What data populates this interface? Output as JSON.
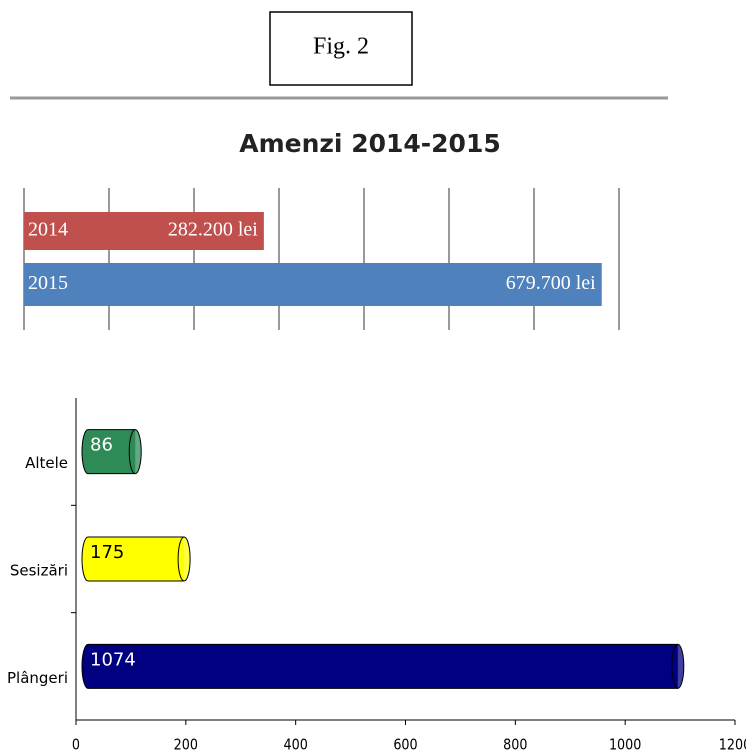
{
  "figure_label": "Fig. 2",
  "chart_data": [
    {
      "type": "bar",
      "orientation": "horizontal",
      "title": "Amenzi 2014-2015",
      "categories": [
        "2014",
        "2015"
      ],
      "values": [
        282200,
        679700
      ],
      "value_labels": [
        "282.200 lei",
        "679.700 lei"
      ],
      "colors": [
        "#c0504d",
        "#4f81bd"
      ],
      "xlim": [
        0,
        700000
      ],
      "xticks": [
        0,
        100000,
        200000,
        300000,
        400000,
        500000,
        600000,
        700000
      ],
      "grid": true
    },
    {
      "type": "bar",
      "orientation": "horizontal",
      "categories": [
        "Altele",
        "Sesizări",
        "Plângeri"
      ],
      "values": [
        86,
        175,
        1074
      ],
      "colors": [
        "#2e8b57",
        "#ffff00",
        "#000080"
      ],
      "xlim": [
        0,
        1200
      ],
      "xticks": [
        0,
        200,
        400,
        600,
        800,
        1000,
        1200
      ],
      "grid": false
    }
  ]
}
